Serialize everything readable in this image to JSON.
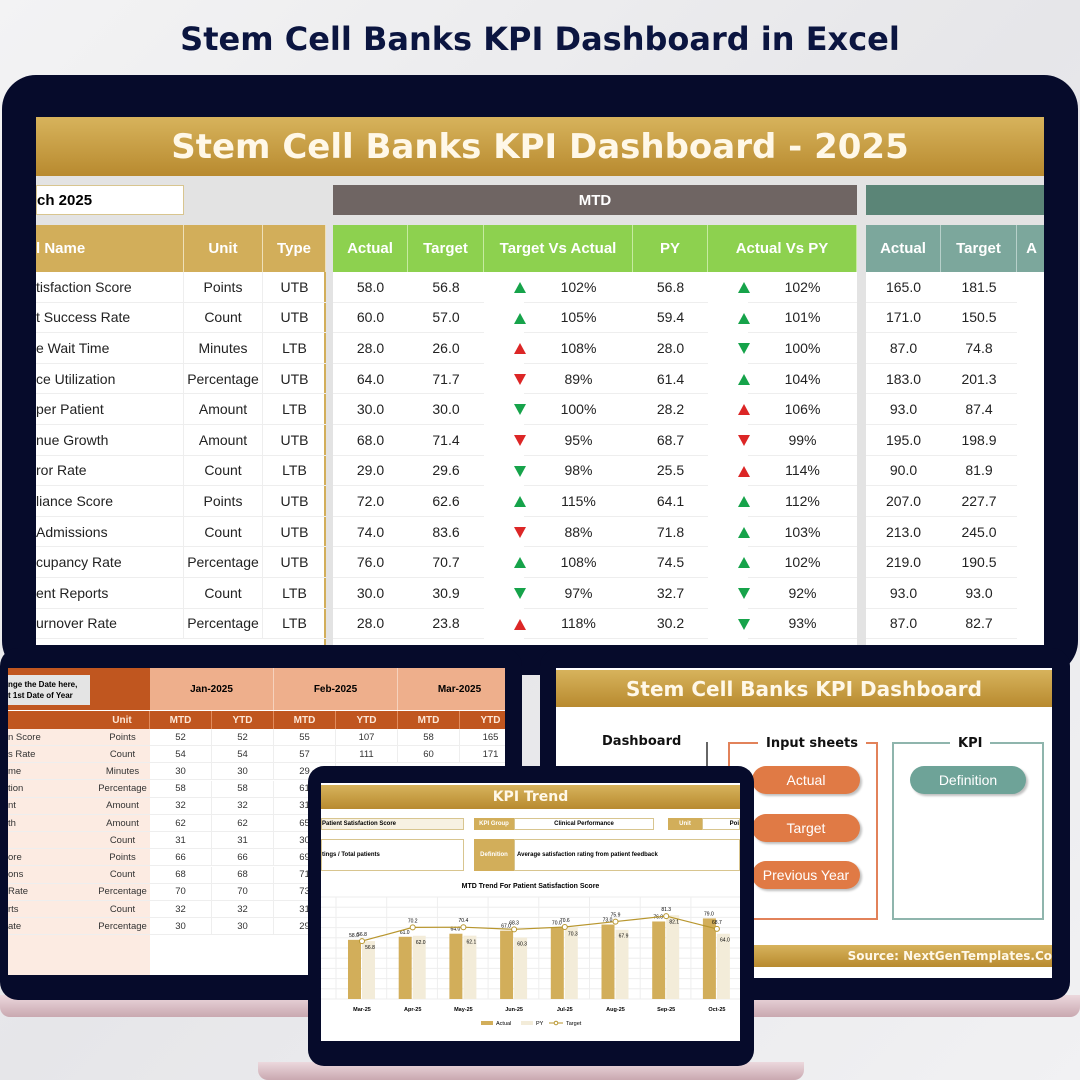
{
  "page_title": "Stem Cell Banks KPI Dashboard in Excel",
  "monitor": {
    "title": "Stem Cell Banks KPI Dashboard - 2025",
    "month_selector": "ch 2025",
    "mtd_label": "MTD",
    "headers": {
      "name": "l Name",
      "unit": "Unit",
      "type": "Type",
      "mtd": [
        "Actual",
        "Target",
        "Target Vs Actual",
        "PY",
        "Actual Vs PY"
      ],
      "ytd": [
        "Actual",
        "Target",
        "A"
      ]
    },
    "colors": {
      "gold": "#c9a03f",
      "mtd_header": "#8dd14f",
      "mtd_band": "#6f6563",
      "ytd_band": "#5b8577",
      "ytd_header": "#7ca79c",
      "up_good": "#16a34a",
      "bad": "#dc2626"
    },
    "rows": [
      {
        "name": "tisfaction Score",
        "unit": "Points",
        "type": "UTB",
        "actual": "58.0",
        "target": "56.8",
        "tva": "102%",
        "tva_icon": "up-green",
        "py": "56.8",
        "avpy": "102%",
        "avpy_icon": "up-green",
        "ytd_actual": "165.0",
        "ytd_target": "181.5"
      },
      {
        "name": "t Success Rate",
        "unit": "Count",
        "type": "UTB",
        "actual": "60.0",
        "target": "57.0",
        "tva": "105%",
        "tva_icon": "up-green",
        "py": "59.4",
        "avpy": "101%",
        "avpy_icon": "up-green",
        "ytd_actual": "171.0",
        "ytd_target": "150.5"
      },
      {
        "name": "e Wait Time",
        "unit": "Minutes",
        "type": "LTB",
        "actual": "28.0",
        "target": "26.0",
        "tva": "108%",
        "tva_icon": "up-red",
        "py": "28.0",
        "avpy": "100%",
        "avpy_icon": "down-green",
        "ytd_actual": "87.0",
        "ytd_target": "74.8"
      },
      {
        "name": "ce Utilization",
        "unit": "Percentage",
        "type": "UTB",
        "actual": "64.0",
        "target": "71.7",
        "tva": "89%",
        "tva_icon": "down-red",
        "py": "61.4",
        "avpy": "104%",
        "avpy_icon": "up-green",
        "ytd_actual": "183.0",
        "ytd_target": "201.3"
      },
      {
        "name": "per Patient",
        "unit": "Amount",
        "type": "LTB",
        "actual": "30.0",
        "target": "30.0",
        "tva": "100%",
        "tva_icon": "down-green",
        "py": "28.2",
        "avpy": "106%",
        "avpy_icon": "up-red",
        "ytd_actual": "93.0",
        "ytd_target": "87.4"
      },
      {
        "name": "nue Growth",
        "unit": "Amount",
        "type": "UTB",
        "actual": "68.0",
        "target": "71.4",
        "tva": "95%",
        "tva_icon": "down-red",
        "py": "68.7",
        "avpy": "99%",
        "avpy_icon": "down-red",
        "ytd_actual": "195.0",
        "ytd_target": "198.9"
      },
      {
        "name": "ror Rate",
        "unit": "Count",
        "type": "LTB",
        "actual": "29.0",
        "target": "29.6",
        "tva": "98%",
        "tva_icon": "down-green",
        "py": "25.5",
        "avpy": "114%",
        "avpy_icon": "up-red",
        "ytd_actual": "90.0",
        "ytd_target": "81.9"
      },
      {
        "name": "liance Score",
        "unit": "Points",
        "type": "UTB",
        "actual": "72.0",
        "target": "62.6",
        "tva": "115%",
        "tva_icon": "up-green",
        "py": "64.1",
        "avpy": "112%",
        "avpy_icon": "up-green",
        "ytd_actual": "207.0",
        "ytd_target": "227.7"
      },
      {
        "name": " Admissions",
        "unit": "Count",
        "type": "UTB",
        "actual": "74.0",
        "target": "83.6",
        "tva": "88%",
        "tva_icon": "down-red",
        "py": "71.8",
        "avpy": "103%",
        "avpy_icon": "up-green",
        "ytd_actual": "213.0",
        "ytd_target": "245.0"
      },
      {
        "name": "cupancy Rate",
        "unit": "Percentage",
        "type": "UTB",
        "actual": "76.0",
        "target": "70.7",
        "tva": "108%",
        "tva_icon": "up-green",
        "py": "74.5",
        "avpy": "102%",
        "avpy_icon": "up-green",
        "ytd_actual": "219.0",
        "ytd_target": "190.5"
      },
      {
        "name": "ent Reports",
        "unit": "Count",
        "type": "LTB",
        "actual": "30.0",
        "target": "30.9",
        "tva": "97%",
        "tva_icon": "down-green",
        "py": "32.7",
        "avpy": "92%",
        "avpy_icon": "down-green",
        "ytd_actual": "93.0",
        "ytd_target": "93.0"
      },
      {
        "name": "urnover Rate",
        "unit": "Percentage",
        "type": "LTB",
        "actual": "28.0",
        "target": "23.8",
        "tva": "118%",
        "tva_icon": "up-red",
        "py": "30.2",
        "avpy": "93%",
        "avpy_icon": "down-green",
        "ytd_actual": "87.0",
        "ytd_target": "82.7"
      }
    ]
  },
  "input_sheet": {
    "callout": [
      "nge the Date here,",
      "t 1st Date of Year"
    ],
    "months": [
      "Jan-2025",
      "Feb-2025",
      "Mar-2025"
    ],
    "sub_headers": [
      "Unit",
      "MTD",
      "YTD",
      "MTD",
      "YTD",
      "MTD",
      "YTD"
    ],
    "rows": [
      {
        "name": "n Score",
        "unit": "Points",
        "vals": [
          "52",
          "52",
          "55",
          "107",
          "58",
          "165"
        ]
      },
      {
        "name": "s Rate",
        "unit": "Count",
        "vals": [
          "54",
          "54",
          "57",
          "111",
          "60",
          "171"
        ]
      },
      {
        "name": "me",
        "unit": "Minutes",
        "vals": [
          "30",
          "30",
          "29"
        ]
      },
      {
        "name": "tion",
        "unit": "Percentage",
        "vals": [
          "58",
          "58",
          "61"
        ]
      },
      {
        "name": "nt",
        "unit": "Amount",
        "vals": [
          "32",
          "32",
          "31"
        ]
      },
      {
        "name": "th",
        "unit": "Amount",
        "vals": [
          "62",
          "62",
          "65"
        ]
      },
      {
        "name": "",
        "unit": "Count",
        "vals": [
          "31",
          "31",
          "30"
        ]
      },
      {
        "name": "ore",
        "unit": "Points",
        "vals": [
          "66",
          "66",
          "69"
        ]
      },
      {
        "name": "ons",
        "unit": "Count",
        "vals": [
          "68",
          "68",
          "71"
        ]
      },
      {
        "name": "Rate",
        "unit": "Percentage",
        "vals": [
          "70",
          "70",
          "73"
        ]
      },
      {
        "name": "rts",
        "unit": "Count",
        "vals": [
          "32",
          "32",
          "31"
        ]
      },
      {
        "name": "ate",
        "unit": "Percentage",
        "vals": [
          "30",
          "30",
          "29"
        ]
      }
    ]
  },
  "nav_sheet": {
    "title": "Stem Cell Banks KPI Dashboard",
    "groups": {
      "dashboard": "Dashboard",
      "input": "Input sheets",
      "kpi": "KPI"
    },
    "input_buttons": [
      "Actual",
      "Target",
      "Previous Year"
    ],
    "kpi_buttons": [
      "Definition"
    ],
    "source": "Source: NextGenTemplates.Co"
  },
  "trend_sheet": {
    "title": "KPI Trend",
    "kpi_name": "Patient Satisfaction Score",
    "kpi_group_label": "KPI Group",
    "kpi_group": "Clinical Performance",
    "unit_label": "Unit",
    "unit": "Poi",
    "formula": "tings / Total patients",
    "definition_label": "Definition",
    "definition": "Average satisfaction rating from patient feedback"
  },
  "chart_data": {
    "type": "bar",
    "title": "MTD Trend For Patient Satisfaction Score",
    "categories": [
      "Mar-25",
      "Apr-25",
      "May-25",
      "Jun-25",
      "Jul-25",
      "Aug-25",
      "Sep-25",
      "Oct-25"
    ],
    "series": [
      {
        "name": "Actual",
        "type": "bar",
        "color": "#d2ae5a",
        "values": [
          58.0,
          61.0,
          64.0,
          67.0,
          70.0,
          73.0,
          76.0,
          79.0
        ]
      },
      {
        "name": "PY",
        "type": "bar",
        "color": "#f3ecd9",
        "values": [
          56.8,
          62.0,
          62.1,
          60.3,
          70.3,
          67.9,
          82.1,
          64.0
        ]
      },
      {
        "name": "Target",
        "type": "line",
        "color": "#b8962e",
        "values": [
          56.8,
          70.2,
          70.4,
          68.3,
          70.6,
          75.9,
          81.3,
          68.7
        ]
      }
    ],
    "ylim": [
      0,
      100
    ],
    "grid": true,
    "legend": "bottom"
  }
}
